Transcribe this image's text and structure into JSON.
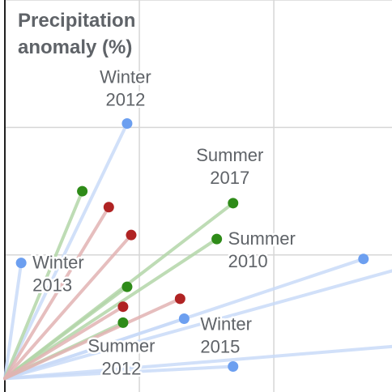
{
  "chart_data": {
    "type": "scatter",
    "title": "",
    "ylabel_lines": [
      "Precipitation",
      "anomaly (%)"
    ],
    "xlabel": "",
    "grid": true,
    "xlim": [
      0,
      9.5
    ],
    "ylim": [
      -0.3,
      9.5
    ],
    "origin": [
      0,
      0
    ],
    "colors": {
      "winter": "#6c9ff0",
      "summer": "#2e8b18",
      "red": "#b02323",
      "grid": "#d6d6d6",
      "axis": "#202020",
      "text": "#5f6368"
    },
    "series": [
      {
        "key": "winter",
        "points": [
          {
            "x": 3.0,
            "y": 6.4,
            "label_lines": [
              "Winter",
              "2012"
            ]
          },
          {
            "x": 0.4,
            "y": 2.9,
            "label_lines": [
              "Winter",
              "2013"
            ]
          },
          {
            "x": 4.4,
            "y": 1.5,
            "label_lines": [
              "Winter",
              "2015"
            ]
          },
          {
            "x": 8.8,
            "y": 3.0
          },
          {
            "x": 5.6,
            "y": 0.3
          }
        ]
      },
      {
        "key": "summer",
        "points": [
          {
            "x": 5.6,
            "y": 4.4,
            "label_lines": [
              "Summer",
              "2017"
            ]
          },
          {
            "x": 5.2,
            "y": 3.5,
            "label_lines": [
              "Summer",
              "2010"
            ]
          },
          {
            "x": 2.9,
            "y": 1.4,
            "label_lines": [
              "Summer",
              "2012"
            ]
          },
          {
            "x": 1.9,
            "y": 4.7
          },
          {
            "x": 3.0,
            "y": 2.3
          }
        ]
      },
      {
        "key": "red",
        "points": [
          {
            "x": 2.55,
            "y": 4.3
          },
          {
            "x": 3.1,
            "y": 3.6
          },
          {
            "x": 4.3,
            "y": 2.0
          },
          {
            "x": 2.9,
            "y": 1.8
          }
        ]
      }
    ],
    "extra_lines": [
      {
        "key": "winter",
        "x": 9.5,
        "y": 2.7
      },
      {
        "key": "winter",
        "x": 9.5,
        "y": 0.8
      }
    ]
  }
}
